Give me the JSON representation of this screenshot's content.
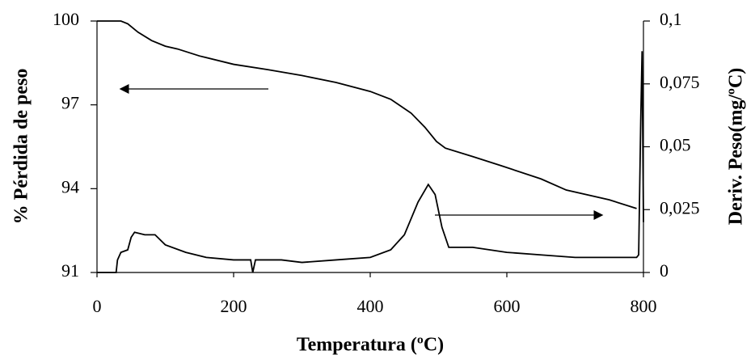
{
  "chart_data": {
    "type": "line",
    "xlabel": "Temperatura (ºC)",
    "ylabel": "% Pérdida de peso",
    "y2label": "Deriv. Peso(mg/ºC)",
    "xlim": [
      0,
      800
    ],
    "xticks": [
      0,
      200,
      400,
      600,
      800
    ],
    "ylim": [
      91,
      100
    ],
    "yticks": [
      91,
      94,
      97,
      100
    ],
    "y2lim": [
      0,
      0.1
    ],
    "y2ticks": [
      0,
      {
        "value": 0.025,
        "label": "0,025"
      },
      {
        "value": 0.05,
        "label": "0,05"
      },
      {
        "value": 0.075,
        "label": "0,075"
      },
      {
        "value": 0.1,
        "label": "0,1"
      }
    ],
    "grid": false,
    "series": [
      {
        "color": "#000000",
        "x": [
          0,
          20,
          35,
          45,
          60,
          80,
          100,
          118,
          150,
          200,
          250,
          300,
          350,
          400,
          430,
          460,
          480,
          497,
          510,
          550,
          592,
          650,
          687,
          750,
          790
        ],
        "values": [
          100,
          100,
          100,
          99.9,
          99.6,
          99.3,
          99.1,
          99.0,
          98.75,
          98.45,
          98.26,
          98.05,
          97.8,
          97.48,
          97.2,
          96.7,
          96.2,
          95.69,
          95.45,
          95.15,
          94.82,
          94.35,
          93.95,
          93.6,
          93.29
        ]
      },
      {
        "color": "#000000",
        "axis": "y2",
        "x": [
          0,
          28,
          30,
          35,
          45,
          50,
          55,
          70,
          85,
          100,
          130,
          160,
          200,
          225,
          228,
          232,
          270,
          300,
          350,
          400,
          430,
          450,
          470,
          485,
          495,
          505,
          515,
          550,
          600,
          650,
          700,
          750,
          790,
          793,
          796,
          798,
          800
        ],
        "values": [
          0,
          0,
          0.005,
          0.008,
          0.009,
          0.014,
          0.016,
          0.015,
          0.015,
          0.011,
          0.008,
          0.006,
          0.005,
          0.005,
          0,
          0.005,
          0.005,
          0.004,
          0.005,
          0.006,
          0.009,
          0.015,
          0.028,
          0.035,
          0.031,
          0.018,
          0.01,
          0.01,
          0.008,
          0.007,
          0.006,
          0.006,
          0.006,
          0.007,
          0.06,
          0.088,
          0.02
        ]
      }
    ]
  }
}
